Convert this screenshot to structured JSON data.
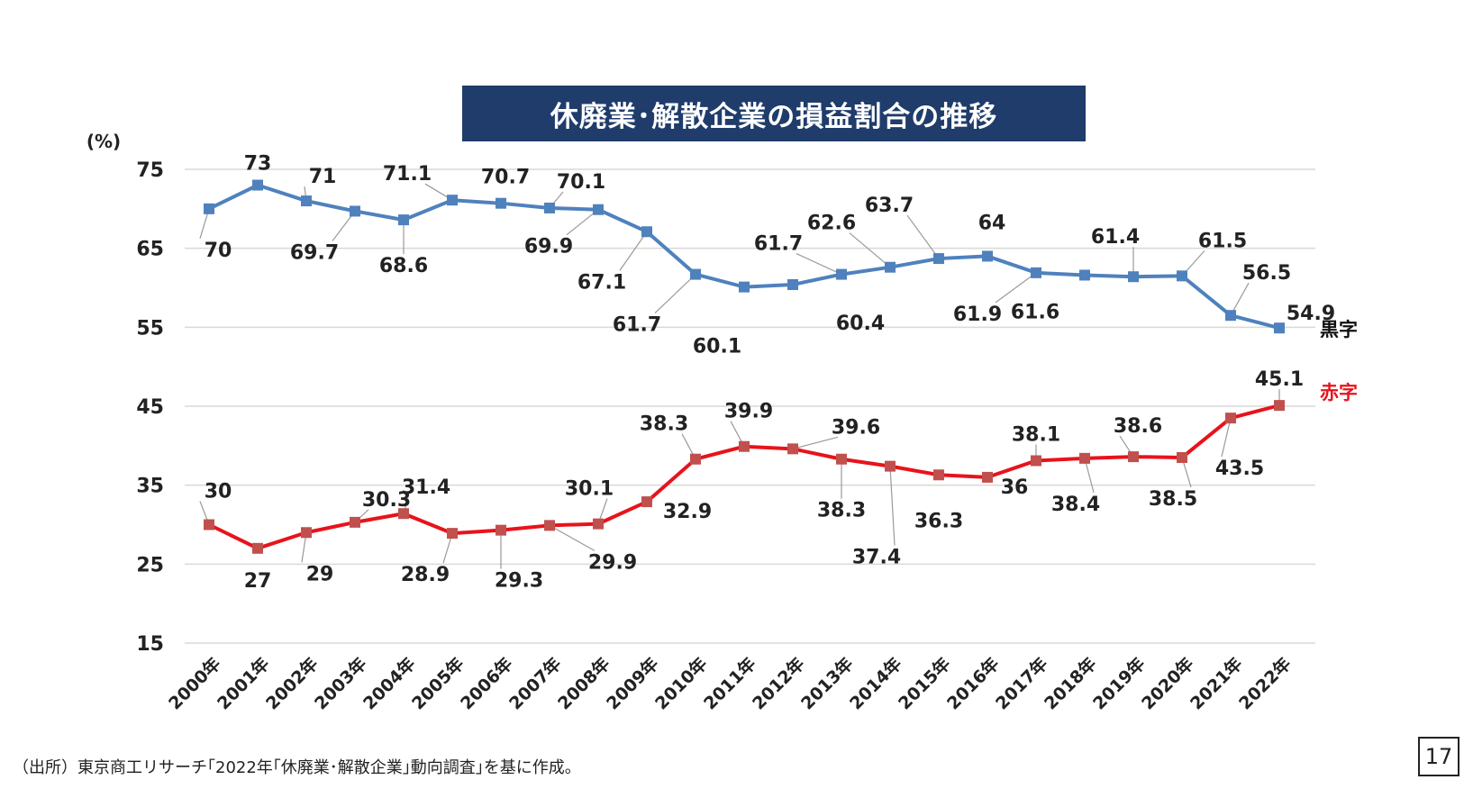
{
  "chart_data": {
    "type": "line",
    "title": "休廃業･解散企業の損益割合の推移",
    "ylabel": "(%)",
    "ylim": [
      15,
      75
    ],
    "yticks": [
      15,
      25,
      35,
      45,
      55,
      65,
      75
    ],
    "grid": true,
    "categories": [
      "2000年",
      "2001年",
      "2002年",
      "2003年",
      "2004年",
      "2005年",
      "2006年",
      "2007年",
      "2008年",
      "2009年",
      "2010年",
      "2011年",
      "2012年",
      "2013年",
      "2014年",
      "2015年",
      "2016年",
      "2017年",
      "2018年",
      "2019年",
      "2020年",
      "2021年",
      "2022年"
    ],
    "series": [
      {
        "name": "黒字",
        "color": "#4f81bd",
        "values": [
          70,
          73,
          71,
          69.7,
          68.6,
          71.1,
          70.7,
          70.1,
          69.9,
          67.1,
          61.7,
          60.1,
          60.4,
          61.7,
          62.6,
          63.7,
          64,
          61.9,
          61.6,
          61.4,
          61.5,
          56.5,
          54.9
        ]
      },
      {
        "name": "赤字",
        "color": "#e8131b",
        "values": [
          30,
          27,
          29,
          30.3,
          31.4,
          28.9,
          29.3,
          29.9,
          30.1,
          32.9,
          38.3,
          39.9,
          39.6,
          38.3,
          37.4,
          36.3,
          36,
          38.1,
          38.4,
          38.6,
          38.5,
          43.5,
          45.1
        ]
      }
    ]
  },
  "footer": {
    "source": "（出所）東京商工リサーチ｢2022年｢休廃業･解散企業｣動向調査｣を基に作成。",
    "page_number": "17"
  }
}
